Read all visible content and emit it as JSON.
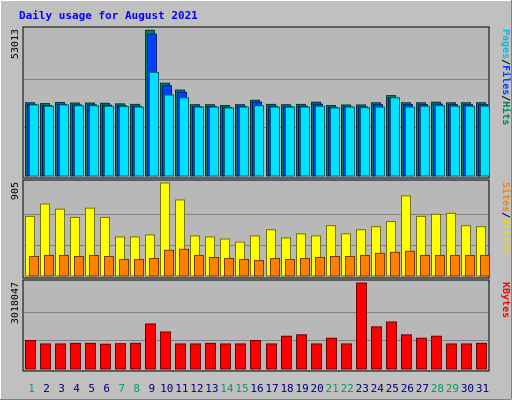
{
  "chart_data": {
    "type": "bar",
    "title": "Daily usage for August 2021",
    "categories": [
      "1",
      "2",
      "3",
      "4",
      "5",
      "6",
      "7",
      "8",
      "9",
      "10",
      "11",
      "12",
      "13",
      "14",
      "15",
      "16",
      "17",
      "18",
      "19",
      "20",
      "21",
      "22",
      "23",
      "24",
      "25",
      "26",
      "27",
      "28",
      "29",
      "30",
      "31"
    ],
    "weekend_days": [
      "1",
      "7",
      "8",
      "14",
      "15",
      "21",
      "22",
      "28",
      "29"
    ],
    "panels": [
      {
        "name": "hits-files-pages",
        "max_label": "53013",
        "ymax": 53013,
        "ylabel_parts": [
          {
            "text": "Pages",
            "color": "#00c0e0"
          },
          {
            "text": "/",
            "color": "#000000"
          },
          {
            "text": "Files",
            "color": "#0040ff"
          },
          {
            "text": "/",
            "color": "#000000"
          },
          {
            "text": "Hits",
            "color": "#008060"
          }
        ],
        "series": [
          {
            "name": "Hits",
            "color": "#008060",
            "values": [
              26600,
              26300,
              26700,
              26500,
              26500,
              26400,
              26200,
              26000,
              52900,
              33700,
              31200,
              25900,
              25900,
              25600,
              25900,
              27500,
              26000,
              25900,
              26000,
              26800,
              25600,
              25800,
              25800,
              26600,
              29200,
              26600,
              26600,
              26800,
              26600,
              26600,
              26600
            ]
          },
          {
            "name": "Files",
            "color": "#0040ff",
            "values": [
              26000,
              25600,
              26000,
              25800,
              25800,
              25700,
              25500,
              25300,
              51500,
              32800,
              30400,
              25200,
              25200,
              24900,
              25200,
              26800,
              25300,
              25200,
              25300,
              26100,
              24900,
              25100,
              25100,
              25900,
              28400,
              25900,
              25900,
              26100,
              25900,
              25900,
              25900
            ]
          },
          {
            "name": "Pages",
            "color": "#00e0ff",
            "values": [
              25800,
              25300,
              25800,
              25500,
              25500,
              25300,
              25200,
              25000,
              37600,
              29400,
              28400,
              25000,
              25000,
              24700,
              25000,
              25500,
              25000,
              25000,
              25000,
              25300,
              24700,
              25000,
              24800,
              25000,
              28400,
              25000,
              25300,
              25500,
              25300,
              25300,
              25300
            ]
          }
        ]
      },
      {
        "name": "visits-sites",
        "max_label": "905",
        "ymax": 905,
        "ylabel_parts": [
          {
            "text": "Sites",
            "color": "#ff8000"
          },
          {
            "text": "/",
            "color": "#000000"
          },
          {
            "text": "Visits",
            "color": "#e0e000"
          }
        ],
        "series": [
          {
            "name": "Visits",
            "color": "#ffff00",
            "values": [
              580,
              700,
              650,
              570,
              660,
              570,
              380,
              380,
              400,
              905,
              740,
              390,
              380,
              360,
              330,
              390,
              450,
              370,
              410,
              390,
              490,
              410,
              450,
              480,
              530,
              780,
              580,
              600,
              610,
              490,
              480
            ]
          },
          {
            "name": "Sites",
            "color": "#ff8000",
            "values": [
              190,
              200,
              200,
              190,
              200,
              190,
              160,
              160,
              170,
              250,
              260,
              200,
              180,
              170,
              160,
              150,
              170,
              160,
              170,
              180,
              190,
              190,
              200,
              220,
              230,
              240,
              200,
              200,
              200,
              200,
              200
            ]
          }
        ]
      },
      {
        "name": "kbytes",
        "max_label": "3018047",
        "ymax": 3018047,
        "ylabel_parts": [
          {
            "text": "KBytes",
            "color": "#ff0000"
          }
        ],
        "series": [
          {
            "name": "KBytes",
            "color": "#ff0000",
            "values": [
              1000000,
              880000,
              880000,
              900000,
              900000,
              870000,
              890000,
              900000,
              1580000,
              1300000,
              880000,
              880000,
              900000,
              880000,
              880000,
              1000000,
              880000,
              1150000,
              1200000,
              880000,
              1080000,
              880000,
              3018000,
              1480000,
              1650000,
              1200000,
              1080000,
              1150000,
              880000,
              880000,
              900000
            ]
          }
        ]
      }
    ]
  }
}
